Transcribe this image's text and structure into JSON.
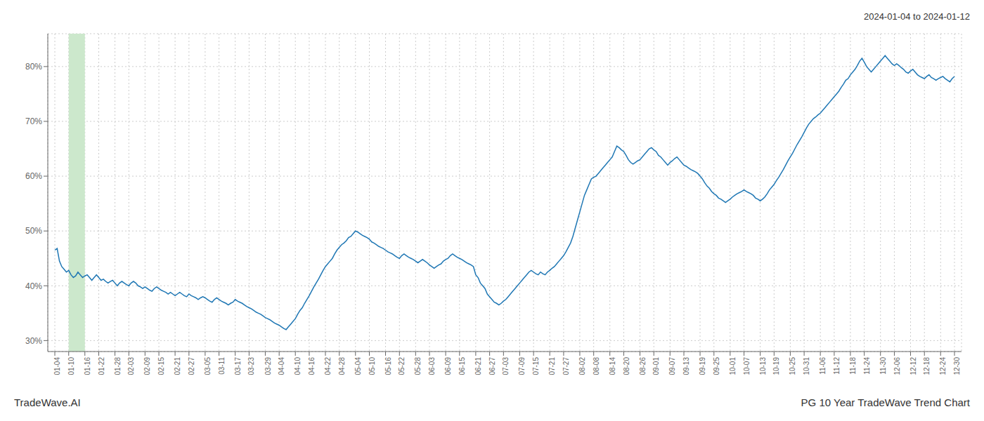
{
  "chart_data": {
    "type": "line",
    "title": "2024-01-04 to 2024-01-12",
    "annotations": [
      "TradeWave.AI",
      "PG 10 Year TradeWave Trend Chart"
    ],
    "color": "#1f77b4",
    "grid": true,
    "highlight": {
      "from": "01-10",
      "to": "01-16",
      "color": "#cce8cc"
    },
    "ylim": [
      28,
      86
    ],
    "yticks": [
      {
        "value": 30,
        "label": "30%"
      },
      {
        "value": 40,
        "label": "40%"
      },
      {
        "value": 50,
        "label": "50%"
      },
      {
        "value": 60,
        "label": "60%"
      },
      {
        "value": 70,
        "label": "70%"
      },
      {
        "value": 80,
        "label": "80%"
      }
    ],
    "categories": [
      "01-04",
      null,
      null,
      null,
      null,
      null,
      "01-10",
      null,
      null,
      null,
      null,
      null,
      null,
      "01-16",
      null,
      null,
      null,
      null,
      null,
      "01-22",
      null,
      null,
      null,
      null,
      null,
      null,
      "01-28",
      null,
      null,
      null,
      null,
      null,
      "02-03",
      null,
      null,
      null,
      null,
      null,
      null,
      "02-09",
      null,
      null,
      null,
      null,
      null,
      "02-15",
      null,
      null,
      null,
      null,
      null,
      null,
      "02-21",
      null,
      null,
      null,
      null,
      null,
      "02-27",
      null,
      null,
      null,
      null,
      null,
      null,
      "03-05",
      null,
      null,
      null,
      null,
      null,
      "03-11",
      null,
      null,
      null,
      null,
      null,
      null,
      "03-17",
      null,
      null,
      null,
      null,
      null,
      "03-23",
      null,
      null,
      null,
      null,
      null,
      null,
      "03-29",
      null,
      null,
      null,
      null,
      null,
      "04-04",
      null,
      null,
      null,
      null,
      null,
      null,
      "04-10",
      null,
      null,
      null,
      null,
      null,
      "04-16",
      null,
      null,
      null,
      null,
      null,
      null,
      "04-22",
      null,
      null,
      null,
      null,
      null,
      "04-28",
      null,
      null,
      null,
      null,
      null,
      null,
      "05-04",
      null,
      null,
      null,
      null,
      null,
      "05-10",
      null,
      null,
      null,
      null,
      null,
      null,
      "05-16",
      null,
      null,
      null,
      null,
      null,
      "05-22",
      null,
      null,
      null,
      null,
      null,
      null,
      "05-28",
      null,
      null,
      null,
      null,
      null,
      "06-03",
      null,
      null,
      null,
      null,
      null,
      null,
      "06-09",
      null,
      null,
      null,
      null,
      null,
      "06-15",
      null,
      null,
      null,
      null,
      null,
      null,
      "06-21",
      null,
      null,
      null,
      null,
      null,
      "06-27",
      null,
      null,
      null,
      null,
      null,
      "07-03",
      null,
      null,
      null,
      null,
      null,
      null,
      "07-09",
      null,
      null,
      null,
      null,
      null,
      "07-15",
      null,
      null,
      null,
      null,
      null,
      null,
      "07-21",
      null,
      null,
      null,
      null,
      null,
      "07-27",
      null,
      null,
      null,
      null,
      null,
      null,
      "08-02",
      null,
      null,
      null,
      null,
      null,
      "08-08",
      null,
      null,
      null,
      null,
      null,
      null,
      "08-14",
      null,
      null,
      null,
      null,
      null,
      "08-20",
      null,
      null,
      null,
      null,
      null,
      null,
      "08-26",
      null,
      null,
      null,
      null,
      null,
      "09-01",
      null,
      null,
      null,
      null,
      null,
      null,
      "09-07",
      null,
      null,
      null,
      null,
      null,
      "09-13",
      null,
      null,
      null,
      null,
      null,
      null,
      "09-19",
      null,
      null,
      null,
      null,
      null,
      "09-25",
      null,
      null,
      null,
      null,
      null,
      null,
      "10-01",
      null,
      null,
      null,
      null,
      null,
      "10-07",
      null,
      null,
      null,
      null,
      null,
      null,
      "10-13",
      null,
      null,
      null,
      null,
      null,
      "10-19",
      null,
      null,
      null,
      null,
      null,
      null,
      "10-25",
      null,
      null,
      null,
      null,
      null,
      "10-31",
      null,
      null,
      null,
      null,
      null,
      null,
      "11-06",
      null,
      null,
      null,
      null,
      null,
      "11-12",
      null,
      null,
      null,
      null,
      null,
      null,
      "11-18",
      null,
      null,
      null,
      null,
      null,
      "11-24",
      null,
      null,
      null,
      null,
      null,
      null,
      "11-30",
      null,
      null,
      null,
      null,
      null,
      "12-06",
      null,
      null,
      null,
      null,
      null,
      null,
      "12-12",
      null,
      null,
      null,
      null,
      null,
      "12-18",
      null,
      null,
      null,
      null,
      null,
      null,
      "12-24",
      null,
      null,
      null,
      null,
      null,
      "12-30"
    ],
    "values": [
      46.5,
      46.8,
      44.5,
      43.5,
      43.0,
      42.5,
      42.8,
      42.0,
      41.5,
      41.8,
      42.5,
      42.0,
      41.5,
      41.8,
      42.0,
      41.5,
      41.0,
      41.5,
      42.0,
      41.5,
      41.0,
      41.2,
      40.8,
      40.5,
      40.8,
      41.0,
      40.5,
      40.0,
      40.5,
      40.8,
      40.5,
      40.2,
      40.0,
      40.5,
      40.8,
      40.5,
      40.0,
      39.8,
      39.5,
      39.8,
      39.5,
      39.2,
      39.0,
      39.5,
      39.8,
      39.5,
      39.2,
      39.0,
      38.8,
      38.5,
      38.8,
      38.5,
      38.2,
      38.5,
      38.8,
      38.5,
      38.2,
      38.0,
      38.5,
      38.2,
      38.0,
      37.8,
      37.5,
      37.8,
      38.0,
      37.8,
      37.5,
      37.2,
      37.0,
      37.5,
      37.8,
      37.5,
      37.2,
      37.0,
      36.8,
      36.5,
      36.8,
      37.0,
      37.5,
      37.2,
      37.0,
      36.8,
      36.5,
      36.2,
      36.0,
      35.8,
      35.5,
      35.2,
      35.0,
      34.8,
      34.5,
      34.2,
      34.0,
      33.8,
      33.5,
      33.2,
      33.0,
      32.8,
      32.5,
      32.2,
      32.0,
      32.5,
      33.0,
      33.5,
      34.0,
      34.8,
      35.5,
      36.0,
      36.8,
      37.5,
      38.2,
      39.0,
      39.8,
      40.5,
      41.2,
      42.0,
      42.8,
      43.5,
      44.0,
      44.5,
      45.0,
      45.8,
      46.5,
      47.0,
      47.5,
      47.8,
      48.2,
      48.8,
      49.0,
      49.5,
      50.0,
      49.8,
      49.5,
      49.2,
      49.0,
      48.8,
      48.5,
      48.0,
      47.8,
      47.5,
      47.2,
      47.0,
      46.8,
      46.5,
      46.2,
      46.0,
      45.8,
      45.5,
      45.2,
      45.0,
      45.5,
      45.8,
      45.5,
      45.2,
      45.0,
      44.8,
      44.5,
      44.2,
      44.5,
      44.8,
      44.5,
      44.2,
      43.8,
      43.5,
      43.2,
      43.5,
      43.8,
      44.0,
      44.5,
      44.8,
      45.0,
      45.5,
      45.8,
      45.5,
      45.2,
      45.0,
      44.8,
      44.5,
      44.2,
      44.0,
      43.8,
      43.5,
      42.0,
      41.5,
      40.5,
      40.0,
      39.5,
      38.5,
      38.0,
      37.5,
      37.0,
      36.8,
      36.5,
      36.8,
      37.2,
      37.5,
      38.0,
      38.5,
      39.0,
      39.5,
      40.0,
      40.5,
      41.0,
      41.5,
      42.0,
      42.5,
      42.8,
      42.5,
      42.2,
      42.0,
      42.5,
      42.2,
      42.0,
      42.5,
      42.8,
      43.2,
      43.5,
      44.0,
      44.5,
      45.0,
      45.5,
      46.2,
      47.0,
      47.8,
      49.0,
      50.5,
      52.0,
      53.5,
      55.0,
      56.5,
      57.5,
      58.5,
      59.5,
      59.8,
      60.0,
      60.5,
      61.0,
      61.5,
      62.0,
      62.5,
      63.0,
      63.5,
      64.5,
      65.5,
      65.2,
      64.8,
      64.5,
      63.8,
      63.0,
      62.5,
      62.2,
      62.5,
      62.8,
      63.0,
      63.5,
      64.0,
      64.5,
      65.0,
      65.2,
      64.8,
      64.5,
      63.8,
      63.5,
      63.0,
      62.5,
      62.0,
      62.5,
      62.8,
      63.2,
      63.5,
      63.0,
      62.5,
      62.0,
      61.8,
      61.5,
      61.2,
      61.0,
      60.8,
      60.5,
      60.0,
      59.5,
      58.8,
      58.2,
      57.8,
      57.2,
      56.8,
      56.5,
      56.0,
      55.8,
      55.5,
      55.2,
      55.5,
      55.8,
      56.2,
      56.5,
      56.8,
      57.0,
      57.2,
      57.5,
      57.2,
      57.0,
      56.8,
      56.5,
      56.0,
      55.8,
      55.5,
      55.8,
      56.2,
      56.8,
      57.5,
      58.0,
      58.5,
      59.2,
      59.8,
      60.5,
      61.2,
      62.0,
      62.8,
      63.5,
      64.2,
      65.0,
      65.8,
      66.5,
      67.2,
      68.0,
      68.8,
      69.5,
      70.0,
      70.5,
      70.8,
      71.2,
      71.5,
      72.0,
      72.5,
      73.0,
      73.5,
      74.0,
      74.5,
      75.0,
      75.5,
      76.2,
      76.8,
      77.5,
      77.8,
      78.5,
      79.0,
      79.5,
      80.2,
      81.0,
      81.5,
      80.8,
      80.0,
      79.5,
      79.0,
      79.5,
      80.0,
      80.5,
      81.0,
      81.5,
      82.0,
      81.5,
      81.0,
      80.5,
      80.2,
      80.5,
      80.2,
      79.8,
      79.5,
      79.0,
      78.8,
      79.2,
      79.5,
      79.0,
      78.5,
      78.2,
      78.0,
      77.8,
      78.2,
      78.5,
      78.0,
      77.8,
      77.5,
      77.8,
      78.0,
      78.2,
      77.8,
      77.5,
      77.2,
      77.8,
      78.2
    ]
  }
}
